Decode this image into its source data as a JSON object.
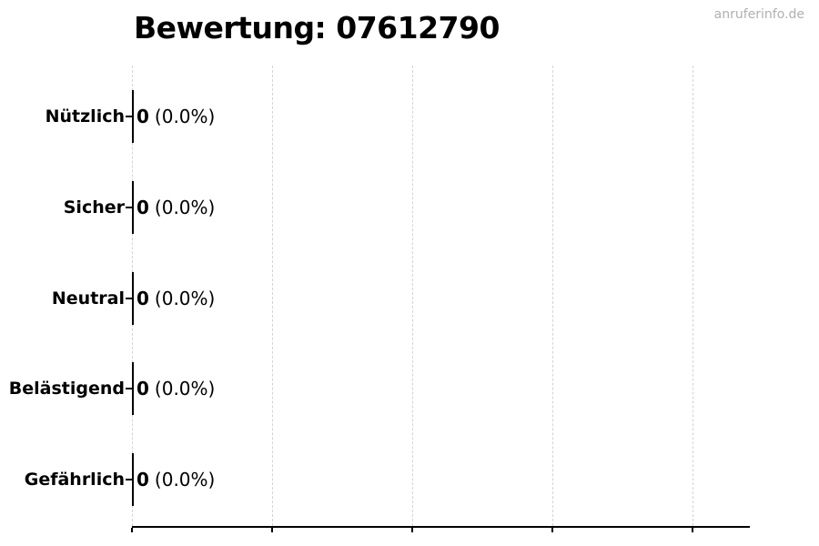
{
  "header": {
    "title": "Bewertung: 07612790",
    "watermark": "anruferinfo.de"
  },
  "colors": {
    "text": "#000000",
    "watermark_gray": "#b0b0b0",
    "gridline_gray": "#d4d4d4",
    "axis_black": "#000000",
    "background": "#ffffff"
  },
  "chart_data": {
    "type": "bar",
    "orientation": "horizontal",
    "title": "Bewertung: 07612790",
    "categories": [
      "Nützlich",
      "Sicher",
      "Neutral",
      "Belästigend",
      "Gefährlich"
    ],
    "values": [
      0,
      0,
      0,
      0,
      0
    ],
    "percentages": [
      0.0,
      0.0,
      0.0,
      0.0,
      0.0
    ],
    "rows": [
      {
        "category": "Nützlich",
        "count": "0",
        "percent": "(0.0%)"
      },
      {
        "category": "Sicher",
        "count": "0",
        "percent": "(0.0%)"
      },
      {
        "category": "Neutral",
        "count": "0",
        "percent": "(0.0%)"
      },
      {
        "category": "Belästigend",
        "count": "0",
        "percent": "(0.0%)"
      },
      {
        "category": "Gefährlich",
        "count": "0",
        "percent": "(0.0%)"
      }
    ],
    "xlabel": "",
    "ylabel": "",
    "xlim": [
      0,
      1
    ],
    "x_tick_labels_visible": false,
    "grid": "vertical-dashed",
    "legend_position": "none",
    "watermark": "anruferinfo.de"
  }
}
